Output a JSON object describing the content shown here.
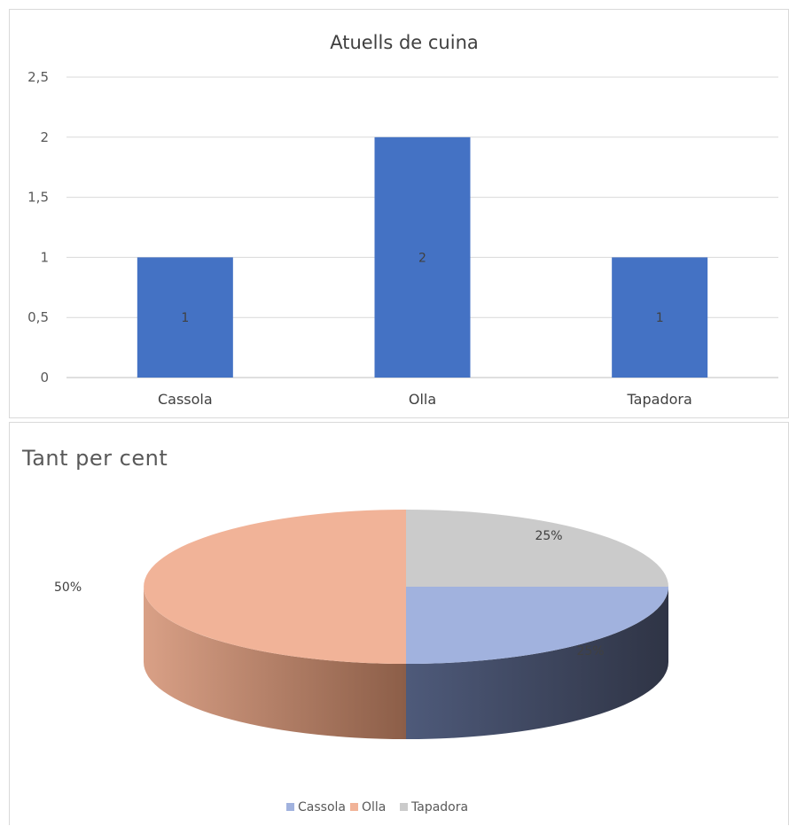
{
  "chart_data": [
    {
      "type": "bar",
      "title": "Atuells de cuina",
      "categories": [
        "Cassola",
        "Olla",
        "Tapadora"
      ],
      "values": [
        1,
        2,
        1
      ],
      "data_labels": [
        "1",
        "2",
        "1"
      ],
      "ylim": [
        0,
        2.5
      ],
      "yticks": [
        0,
        0.5,
        1,
        1.5,
        2,
        2.5
      ],
      "ytick_labels": [
        "0",
        "0,5",
        "1",
        "1,5",
        "2",
        "2,5"
      ],
      "xlabel": "",
      "ylabel": "",
      "grid": true,
      "bar_color": "#4472C4"
    },
    {
      "type": "pie",
      "style": "3d",
      "title": "Tant per cent",
      "categories": [
        "Cassola",
        "Olla",
        "Tapadora"
      ],
      "values": [
        25,
        50,
        25
      ],
      "data_labels": [
        "25%",
        "50%",
        "25%"
      ],
      "colors": [
        "#A1B2DE",
        "#F1B398",
        "#CBCBCB"
      ],
      "side_colors": [
        "#4A5677",
        "#B98064",
        "#8A8A8A"
      ],
      "legend": {
        "position": "bottom",
        "entries": [
          "Cassola",
          "Olla",
          "Tapadora"
        ]
      }
    }
  ]
}
